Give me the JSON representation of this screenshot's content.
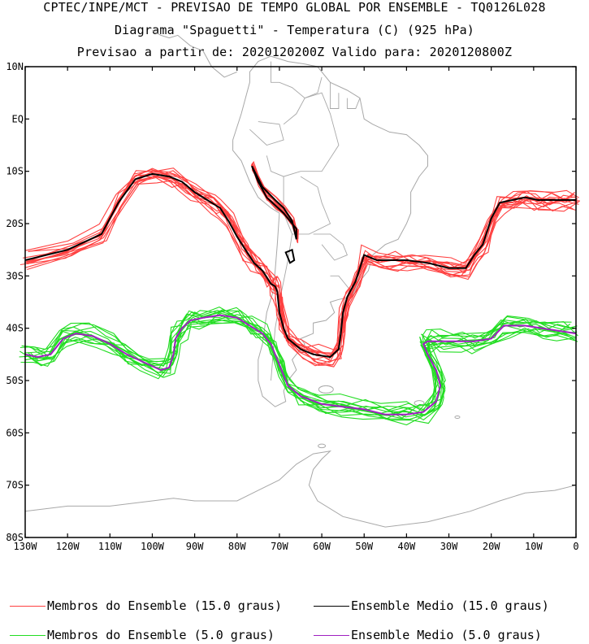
{
  "chart_data": {
    "type": "line",
    "title": "CPTEC/INPE/MCT - PREVISAO DE TEMPO GLOBAL POR ENSEMBLE - TQ0126L028",
    "subtitle": "Diagrama \"Spaguetti\" - Temperatura (C) (925 hPa)",
    "subtitle2": "Previsao a partir de: 2020120200Z  Valido para: 2020120800Z",
    "x_ticks": [
      "130W",
      "120W",
      "110W",
      "100W",
      "90W",
      "80W",
      "70W",
      "60W",
      "50W",
      "40W",
      "30W",
      "20W",
      "10W",
      "0"
    ],
    "y_ticks": [
      "10N",
      "EQ",
      "10S",
      "20S",
      "30S",
      "40S",
      "50S",
      "60S",
      "70S",
      "80S"
    ],
    "xlim": [
      -130,
      0
    ],
    "ylim": [
      -80,
      10
    ],
    "grid": false,
    "legend_position": "bottom",
    "colors": {
      "members15": "#ff4040",
      "mean15": "#000000",
      "members5": "#22dd22",
      "mean5": "#a020c0",
      "coast": "#a8a8a8"
    },
    "series": [
      {
        "name": "Ensemble Medio (15.0 graus)",
        "x": [
          -130,
          -120,
          -112,
          -108,
          -104,
          -100,
          -96,
          -93,
          -90,
          -86,
          -84,
          -82,
          -80,
          -78,
          -76,
          -74,
          -72,
          -71,
          -70.5,
          -70,
          -69,
          -68,
          -65,
          -62,
          -58,
          -56,
          -55.5,
          -55,
          -54,
          -52,
          -50,
          -47,
          -43,
          -40,
          -35,
          -30,
          -26,
          -24,
          -22,
          -20,
          -18,
          -15,
          -12,
          -9,
          -6,
          -3,
          0
        ],
        "y": [
          -27,
          -25,
          -22,
          -16,
          -11.5,
          -10.5,
          -11,
          -12,
          -14,
          -16,
          -17,
          -19.5,
          -22.5,
          -25,
          -27.5,
          -29,
          -31.5,
          -32,
          -33,
          -37,
          -40,
          -42,
          -44,
          -45,
          -45.5,
          -44,
          -41,
          -37,
          -34,
          -31,
          -26,
          -27,
          -27,
          -27,
          -27.5,
          -28.5,
          -28.5,
          -26,
          -24,
          -19,
          -16,
          -15.5,
          -15,
          -15.5,
          -15.5,
          -15.5,
          -15.5
        ]
      },
      {
        "name": "Ensemble Medio (5.0 graus)",
        "x": [
          -130,
          -127,
          -124,
          -121,
          -118,
          -114,
          -110,
          -106,
          -102,
          -98,
          -96,
          -95,
          -94.5,
          -93,
          -91,
          -88,
          -84,
          -80,
          -77,
          -74,
          -72,
          -70,
          -68,
          -65,
          -60,
          -55,
          -50,
          -45,
          -40,
          -36,
          -33,
          -32,
          -33,
          -35,
          -36,
          -35,
          -32,
          -28,
          -24,
          -20,
          -17,
          -12,
          -8,
          -4,
          0
        ],
        "y": [
          -45,
          -45.5,
          -45,
          -42,
          -41,
          -41.5,
          -43,
          -45,
          -46.5,
          -48,
          -47.5,
          -45,
          -42,
          -40,
          -38.5,
          -38,
          -37.5,
          -38,
          -39.5,
          -41,
          -43,
          -47,
          -51,
          -53,
          -54.5,
          -55,
          -55.5,
          -56.5,
          -56.5,
          -56,
          -54,
          -51,
          -48,
          -45,
          -43,
          -42.5,
          -42.5,
          -42.5,
          -42.5,
          -42,
          -39.5,
          -39.5,
          -40,
          -40.5,
          -41
        ]
      },
      {
        "name": "Membros do Ensemble (15.0 graus)",
        "x": [
          -130,
          -120,
          -112,
          -108,
          -104,
          -100,
          -96,
          -93,
          -90,
          -86,
          -84,
          -82,
          -80,
          -78,
          -76,
          -74,
          -72,
          -71,
          -70.5,
          -70,
          -69,
          -68,
          -65,
          -62,
          -58,
          -56,
          -55.5,
          -55,
          -54,
          -52,
          -50,
          -47,
          -43,
          -40,
          -35,
          -30,
          -26,
          -24,
          -22,
          -20,
          -18,
          -15,
          -12,
          -9,
          -6,
          -3,
          0
        ],
        "y": [
          -27,
          -25,
          -22,
          -16,
          -11.5,
          -10.5,
          -11,
          -12,
          -14,
          -16,
          -17,
          -19.5,
          -22.5,
          -25,
          -27.5,
          -29,
          -31.5,
          -32,
          -33,
          -37,
          -40,
          -42,
          -44,
          -45,
          -45.5,
          -44,
          -41,
          -37,
          -34,
          -31,
          -26,
          -27,
          -27,
          -27,
          -27.5,
          -28.5,
          -28.5,
          -26,
          -24,
          -19,
          -16,
          -15.5,
          -15,
          -15.5,
          -15.5,
          -15.5,
          -15.5
        ]
      },
      {
        "name": "Membros do Ensemble (5.0 graus)",
        "x": [
          -130,
          -127,
          -124,
          -121,
          -118,
          -114,
          -110,
          -106,
          -102,
          -98,
          -96,
          -95,
          -94.5,
          -93,
          -91,
          -88,
          -84,
          -80,
          -77,
          -74,
          -72,
          -70,
          -68,
          -65,
          -60,
          -55,
          -50,
          -45,
          -40,
          -36,
          -33,
          -32,
          -33,
          -35,
          -36,
          -35,
          -32,
          -28,
          -24,
          -20,
          -17,
          -12,
          -8,
          -4,
          0
        ],
        "y": [
          -45,
          -45.5,
          -45,
          -42,
          -41,
          -41.5,
          -43,
          -45,
          -46.5,
          -48,
          -47.5,
          -45,
          -42,
          -40,
          -38.5,
          -38,
          -37.5,
          -38,
          -39.5,
          -41,
          -43,
          -47,
          -51,
          -53,
          -54.5,
          -55,
          -55.5,
          -56.5,
          -56.5,
          -56,
          -54,
          -51,
          -48,
          -45,
          -43,
          -42.5,
          -42.5,
          -42.5,
          -42.5,
          -42,
          -39.5,
          -39.5,
          -40,
          -40.5,
          -41
        ]
      }
    ],
    "andes_loop_15": {
      "x": [
        -76.5,
        -74,
        -71,
        -69,
        -67,
        -66,
        -66,
        -67.5,
        -69,
        -71,
        -73,
        -75,
        -76.5
      ],
      "y": [
        -9,
        -13,
        -15.5,
        -17,
        -19.5,
        -23,
        -21,
        -19.5,
        -18,
        -16.5,
        -15,
        -12,
        -9
      ]
    },
    "andes_small_loop_15": {
      "x": [
        -68.5,
        -67,
        -66.5,
        -67.5,
        -68.5
      ],
      "y": [
        -25.5,
        -25,
        -27,
        -27.5,
        -25.5
      ]
    },
    "legend": [
      {
        "label": "Membros do Ensemble (15.0 graus)",
        "color": "#ff4040"
      },
      {
        "label": "Ensemble Medio (15.0 graus)",
        "color": "#000000"
      },
      {
        "label": "Membros do Ensemble (5.0 graus)",
        "color": "#22dd22"
      },
      {
        "label": "Ensemble Medio (5.0 graus)",
        "color": "#a020c0"
      }
    ]
  }
}
